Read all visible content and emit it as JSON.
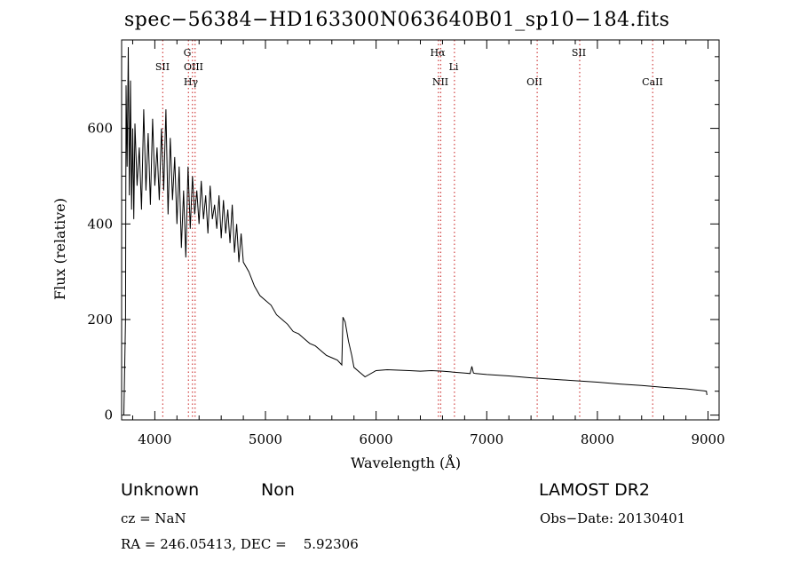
{
  "chart_data": {
    "type": "line",
    "title": "spec−56384−HD163300N063640B01_sp10−184.fits",
    "xlabel": "Wavelength (Å)",
    "ylabel": "Flux (relative)",
    "xlim": [
      3700,
      9100
    ],
    "ylim": [
      -10,
      785
    ],
    "x_ticks": [
      4000,
      5000,
      6000,
      7000,
      8000,
      9000
    ],
    "y_ticks": [
      0,
      200,
      400,
      600
    ],
    "grid": false,
    "series": [
      {
        "x": [
          3720,
          3735,
          3740,
          3750,
          3760,
          3770,
          3780,
          3790,
          3800,
          3810,
          3820,
          3840,
          3860,
          3880,
          3900,
          3920,
          3940,
          3960,
          3980,
          4000,
          4020,
          4040,
          4060,
          4080,
          4100,
          4120,
          4140,
          4160,
          4180,
          4200,
          4220,
          4240,
          4260,
          4280,
          4300,
          4320,
          4340,
          4360,
          4380,
          4400,
          4420,
          4440,
          4460,
          4480,
          4500,
          4520,
          4540,
          4560,
          4580,
          4600,
          4620,
          4640,
          4660,
          4680,
          4700,
          4720,
          4740,
          4760,
          4780,
          4800,
          4850,
          4900,
          4950,
          5000,
          5050,
          5100,
          5150,
          5200,
          5250,
          5300,
          5350,
          5400,
          5450,
          5500,
          5550,
          5600,
          5650,
          5690,
          5700,
          5720,
          5750,
          5780,
          5800,
          5850,
          5900,
          6000,
          6100,
          6200,
          6300,
          6400,
          6500,
          6600,
          6700,
          6800,
          6850,
          6865,
          6880,
          6900,
          7000,
          7200,
          7400,
          7600,
          7800,
          8000,
          8200,
          8400,
          8600,
          8800,
          8960,
          8985,
          8990
        ],
        "y": [
          0,
          200,
          690,
          520,
          770,
          460,
          700,
          430,
          600,
          410,
          610,
          480,
          560,
          430,
          640,
          470,
          590,
          440,
          620,
          480,
          560,
          450,
          600,
          470,
          640,
          420,
          580,
          450,
          540,
          400,
          520,
          350,
          470,
          330,
          520,
          390,
          500,
          420,
          470,
          400,
          490,
          410,
          460,
          380,
          480,
          410,
          440,
          390,
          460,
          370,
          450,
          380,
          430,
          360,
          440,
          340,
          400,
          320,
          380,
          320,
          300,
          270,
          250,
          240,
          230,
          210,
          200,
          190,
          175,
          170,
          160,
          150,
          145,
          135,
          125,
          120,
          115,
          105,
          205,
          195,
          155,
          125,
          100,
          90,
          80,
          93,
          95,
          94,
          93,
          92,
          93,
          92,
          90,
          88,
          87,
          102,
          88,
          87,
          85,
          82,
          78,
          75,
          72,
          69,
          65,
          62,
          58,
          55,
          51,
          50,
          42
        ]
      }
    ],
    "line_markers": [
      {
        "label": "SII",
        "wavelength": 4072
      },
      {
        "label": "G",
        "wavelength": 4304
      },
      {
        "label": "OIII",
        "wavelength": 4340
      },
      {
        "label": "Hγ",
        "wavelength": 4364
      },
      {
        "label": "Hα",
        "wavelength": 6563
      },
      {
        "label": "NII",
        "wavelength": 6584
      },
      {
        "label": "Li",
        "wavelength": 6708
      },
      {
        "label": "OII",
        "wavelength": 7456
      },
      {
        "label": "SII",
        "wavelength": 7840
      },
      {
        "label": "CaII",
        "wavelength": 8500
      }
    ]
  },
  "footer": {
    "class_label": "Unknown",
    "subclass_label": "Non",
    "survey": "LAMOST DR2",
    "cz": "cz = NaN",
    "obs_date": "Obs−Date: 20130401",
    "coords": "RA = 246.05413, DEC =    5.92306"
  }
}
